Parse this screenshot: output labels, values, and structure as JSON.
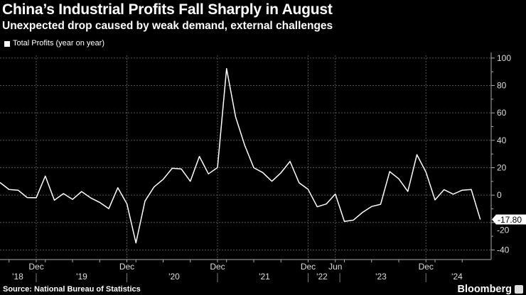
{
  "title": "China’s Industrial Profits Fall Sharply in August",
  "subtitle": "Unexpected drop caused by weak demand, external challenges",
  "source": "Source: National Bureau of Statistics",
  "brand": "Bloomberg",
  "colors": {
    "background": "#000000",
    "line": "#ffffff",
    "grid": "#555555"
  },
  "chart_data": {
    "type": "line",
    "legend": "Total Profits (year on year)",
    "legend_position": "top-left",
    "grid": true,
    "ylim": [
      -47,
      102
    ],
    "y_ticks": [
      -40,
      -20,
      0,
      20,
      40,
      60,
      80,
      100
    ],
    "y_axis_side": "right",
    "last_value_label": "-17.80",
    "x": [
      "2018-08",
      "2018-09",
      "2018-10",
      "2018-11",
      "2018-12",
      "2019-03",
      "2019-04",
      "2019-05",
      "2019-06",
      "2019-07",
      "2019-08",
      "2019-09",
      "2019-10",
      "2019-11",
      "2019-12",
      "2020-03",
      "2020-04",
      "2020-05",
      "2020-06",
      "2020-07",
      "2020-08",
      "2020-09",
      "2020-10",
      "2020-11",
      "2020-12",
      "2021-03",
      "2021-04",
      "2021-05",
      "2021-06",
      "2021-07",
      "2021-08",
      "2021-09",
      "2021-10",
      "2021-11",
      "2021-12",
      "2022-04",
      "2022-05",
      "2022-06",
      "2023-03",
      "2023-04",
      "2023-05",
      "2023-06",
      "2023-07",
      "2023-08",
      "2023-09",
      "2023-10",
      "2023-11",
      "2023-12",
      "2024-03",
      "2024-04",
      "2024-05",
      "2024-06",
      "2024-07",
      "2024-08"
    ],
    "series": [
      {
        "name": "Total Profits (year on year)",
        "values": [
          9.2,
          4.1,
          3.6,
          -1.8,
          -1.9,
          13.9,
          -3.7,
          1.1,
          -3.1,
          2.6,
          -2.0,
          -5.3,
          -9.9,
          5.4,
          -6.3,
          -34.9,
          -4.3,
          6.0,
          11.5,
          19.6,
          19.1,
          10.1,
          28.2,
          15.5,
          20.1,
          92.3,
          57.0,
          36.4,
          20.0,
          16.4,
          10.1,
          16.3,
          24.6,
          9.0,
          4.2,
          -8.5,
          -6.5,
          0.8,
          -19.2,
          -18.2,
          -12.6,
          -8.3,
          -6.7,
          17.2,
          11.9,
          2.7,
          29.5,
          16.8,
          -3.5,
          4.0,
          0.7,
          3.6,
          4.1,
          -17.8
        ]
      }
    ],
    "x_major_labels": [
      {
        "label": "Dec",
        "at": "2018-12"
      },
      {
        "label": "Dec",
        "at": "2019-12"
      },
      {
        "label": "Dec",
        "at": "2020-12"
      },
      {
        "label": "Dec",
        "at": "2021-12"
      },
      {
        "label": "Jun",
        "at": "2022-06"
      },
      {
        "label": "Dec",
        "at": "2023-12"
      }
    ],
    "x_year_labels": [
      "'18",
      "'19",
      "'20",
      "'21",
      "'22",
      "'23",
      "'24"
    ]
  }
}
